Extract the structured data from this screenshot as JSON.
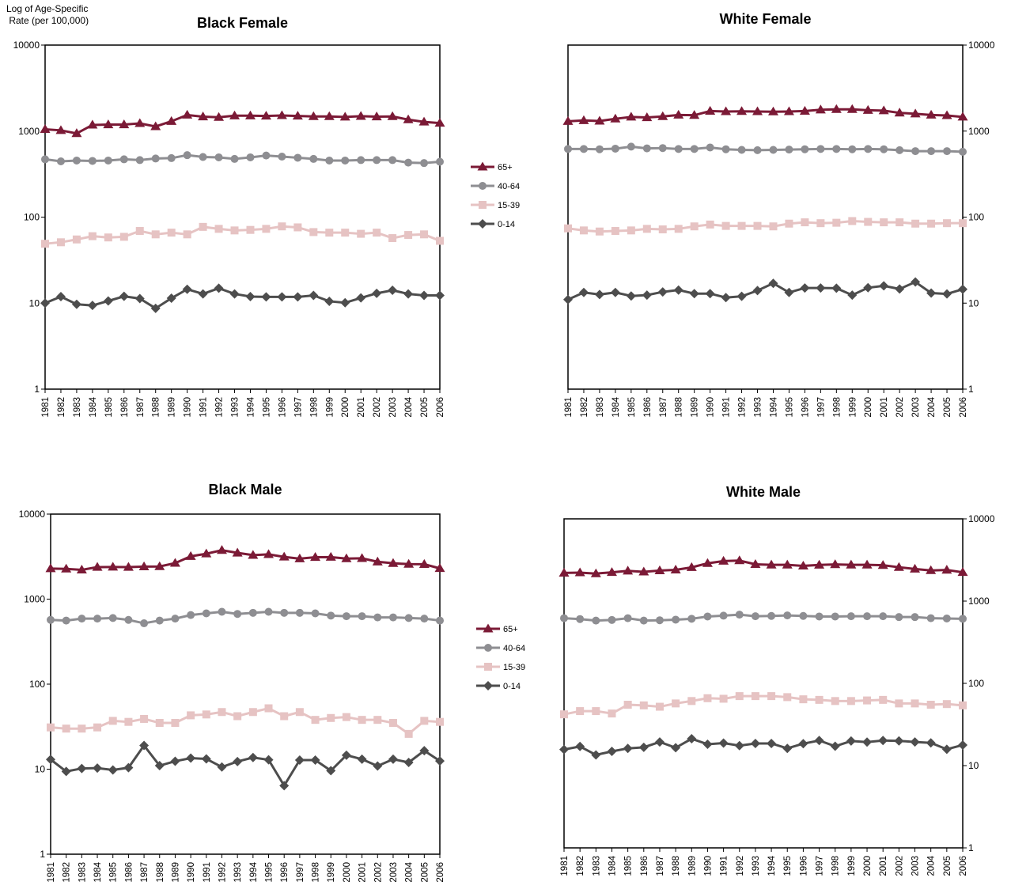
{
  "figure": {
    "ylabel_line1": "Log of Age-Specific",
    "ylabel_line2": " Rate (per 100,000)"
  },
  "colors": {
    "65+": "#7b1a36",
    "40-64": "#8e8e92",
    "15-39": "#e6c3c3",
    "0-14": "#4d4d4d"
  },
  "chart_data": [
    {
      "type": "line",
      "title": "Black Female",
      "x": [
        "1981",
        "1982",
        "1983",
        "1984",
        "1985",
        "1986",
        "1987",
        "1988",
        "1989",
        "1990",
        "1991",
        "1992",
        "1993",
        "1994",
        "1995",
        "1996",
        "1997",
        "1998",
        "1999",
        "2000",
        "2001",
        "2002",
        "2003",
        "2004",
        "2005",
        "2006"
      ],
      "yscale": "log",
      "ylim": [
        1,
        10000
      ],
      "yticks": [
        "1",
        "10",
        "100",
        "1000",
        "10000"
      ],
      "axis_side": "left",
      "series": [
        {
          "name": "65+",
          "marker": "triangle",
          "values": [
            1050,
            1020,
            940,
            1180,
            1190,
            1190,
            1230,
            1130,
            1300,
            1540,
            1470,
            1450,
            1510,
            1510,
            1500,
            1520,
            1500,
            1480,
            1480,
            1460,
            1490,
            1470,
            1480,
            1360,
            1280,
            1240
          ]
        },
        {
          "name": "40-64",
          "marker": "circle",
          "values": [
            470,
            445,
            455,
            450,
            455,
            470,
            460,
            480,
            485,
            525,
            500,
            495,
            475,
            495,
            520,
            505,
            490,
            475,
            455,
            455,
            460,
            460,
            460,
            430,
            425,
            440
          ]
        },
        {
          "name": "15-39",
          "marker": "square",
          "values": [
            49,
            51,
            55,
            60,
            58,
            59,
            69,
            63,
            66,
            63,
            77,
            73,
            70,
            71,
            73,
            78,
            76,
            67,
            66,
            66,
            64,
            66,
            57,
            62,
            63,
            53
          ]
        },
        {
          "name": "0-14",
          "marker": "diamond",
          "values": [
            10,
            11.9,
            9.7,
            9.4,
            10.6,
            12,
            11.3,
            8.7,
            11.4,
            14.5,
            12.8,
            14.9,
            12.8,
            11.9,
            11.8,
            11.8,
            11.8,
            12.3,
            10.5,
            10.1,
            11.5,
            13,
            14.1,
            12.8,
            12.3,
            12.3
          ]
        }
      ]
    },
    {
      "type": "line",
      "title": "White Female",
      "x": [
        "1981",
        "1982",
        "1983",
        "1984",
        "1985",
        "1986",
        "1987",
        "1988",
        "1989",
        "1990",
        "1991",
        "1992",
        "1993",
        "1994",
        "1995",
        "1996",
        "1997",
        "1998",
        "1999",
        "2000",
        "2001",
        "2002",
        "2003",
        "2004",
        "2005",
        "2006"
      ],
      "yscale": "log",
      "ylim": [
        1,
        10000
      ],
      "yticks": [
        "1",
        "10",
        "100",
        "1000",
        "10000"
      ],
      "axis_side": "right",
      "series": [
        {
          "name": "65+",
          "marker": "triangle",
          "values": [
            1300,
            1330,
            1310,
            1390,
            1460,
            1440,
            1480,
            1540,
            1530,
            1710,
            1690,
            1700,
            1690,
            1680,
            1690,
            1710,
            1770,
            1790,
            1790,
            1750,
            1730,
            1630,
            1590,
            1540,
            1520,
            1460
          ]
        },
        {
          "name": "40-64",
          "marker": "circle",
          "values": [
            620,
            620,
            615,
            625,
            660,
            630,
            635,
            620,
            620,
            645,
            615,
            605,
            600,
            605,
            610,
            615,
            620,
            620,
            615,
            620,
            615,
            600,
            585,
            585,
            585,
            575
          ]
        },
        {
          "name": "15-39",
          "marker": "square",
          "values": [
            74,
            70,
            68,
            69,
            70,
            73,
            72,
            73,
            78,
            82,
            79,
            79,
            79,
            78,
            84,
            87,
            85,
            86,
            90,
            88,
            87,
            87,
            84,
            84,
            85,
            85
          ]
        },
        {
          "name": "0-14",
          "marker": "diamond",
          "values": [
            11,
            13.3,
            12.6,
            13.3,
            12.1,
            12.4,
            13.5,
            14.2,
            12.9,
            12.9,
            11.6,
            12,
            14,
            17,
            13.3,
            15,
            15,
            14.9,
            12.4,
            15.1,
            15.9,
            14.6,
            17.6,
            13.1,
            12.8,
            14.5
          ]
        }
      ]
    },
    {
      "type": "line",
      "title": "Black Male",
      "x": [
        "1981",
        "1982",
        "1983",
        "1984",
        "1985",
        "1986",
        "1987",
        "1988",
        "1989",
        "1990",
        "1991",
        "1992",
        "1993",
        "1994",
        "1995",
        "1996",
        "1997",
        "1998",
        "1999",
        "2000",
        "2001",
        "2002",
        "2003",
        "2004",
        "2005",
        "2006"
      ],
      "yscale": "log",
      "ylim": [
        1,
        10000
      ],
      "yticks": [
        "1",
        "10",
        "100",
        "1000",
        "10000"
      ],
      "axis_side": "left",
      "series": [
        {
          "name": "65+",
          "marker": "triangle",
          "values": [
            2290,
            2270,
            2210,
            2380,
            2390,
            2380,
            2410,
            2420,
            2650,
            3190,
            3420,
            3760,
            3500,
            3290,
            3360,
            3140,
            2990,
            3110,
            3120,
            3000,
            3020,
            2750,
            2640,
            2580,
            2570,
            2300
          ]
        },
        {
          "name": "40-64",
          "marker": "circle",
          "values": [
            570,
            560,
            590,
            590,
            600,
            570,
            520,
            560,
            590,
            650,
            680,
            710,
            670,
            690,
            710,
            690,
            690,
            680,
            640,
            630,
            630,
            610,
            610,
            600,
            590,
            560
          ]
        },
        {
          "name": "15-39",
          "marker": "square",
          "values": [
            31,
            30,
            30,
            31,
            37,
            36,
            39,
            35,
            35,
            43,
            44,
            47,
            42,
            47,
            52,
            42,
            47,
            38,
            40,
            41,
            38,
            38,
            35,
            26,
            37,
            36
          ]
        },
        {
          "name": "0-14",
          "marker": "diamond",
          "values": [
            13,
            9.4,
            10.2,
            10.3,
            9.8,
            10.4,
            19,
            11,
            12.4,
            13.5,
            13.2,
            10.6,
            12.3,
            13.7,
            12.9,
            6.4,
            12.8,
            12.8,
            9.6,
            14.6,
            13.1,
            10.9,
            13.1,
            12,
            16.5,
            12.5
          ]
        }
      ]
    },
    {
      "type": "line",
      "title": "White Male",
      "x": [
        "1981",
        "1982",
        "1983",
        "1984",
        "1985",
        "1986",
        "1987",
        "1988",
        "1989",
        "1990",
        "1991",
        "1992",
        "1993",
        "1994",
        "1995",
        "1996",
        "1997",
        "1998",
        "1999",
        "2000",
        "2001",
        "2002",
        "2003",
        "2004",
        "2005",
        "2006"
      ],
      "yscale": "log",
      "ylim": [
        1,
        10000
      ],
      "yticks": [
        "1",
        "10",
        "100",
        "1000",
        "10000"
      ],
      "axis_side": "right",
      "series": [
        {
          "name": "65+",
          "marker": "triangle",
          "values": [
            2200,
            2220,
            2160,
            2240,
            2330,
            2270,
            2350,
            2400,
            2570,
            2880,
            3070,
            3110,
            2800,
            2760,
            2760,
            2680,
            2750,
            2790,
            2760,
            2760,
            2730,
            2580,
            2460,
            2360,
            2390,
            2240
          ]
        },
        {
          "name": "40-64",
          "marker": "circle",
          "values": [
            620,
            605,
            580,
            590,
            620,
            580,
            585,
            595,
            610,
            650,
            665,
            685,
            655,
            660,
            670,
            660,
            650,
            650,
            655,
            655,
            655,
            640,
            640,
            620,
            615,
            610
          ]
        },
        {
          "name": "15-39",
          "marker": "square",
          "values": [
            42,
            46,
            46,
            43,
            55,
            54,
            52,
            57,
            61,
            66,
            65,
            70,
            70,
            70,
            68,
            64,
            63,
            61,
            61,
            62,
            63,
            57,
            57,
            55,
            56,
            54
          ]
        },
        {
          "name": "0-14",
          "marker": "diamond",
          "values": [
            15.7,
            17.1,
            13.5,
            14.9,
            16.2,
            16.7,
            19.4,
            16.5,
            21.2,
            18.2,
            18.8,
            17.5,
            18.6,
            18.6,
            16.2,
            18.5,
            20.2,
            17.2,
            19.9,
            19.3,
            20.2,
            20,
            19.4,
            18.9,
            15.8,
            17.8
          ]
        }
      ]
    }
  ],
  "legend": {
    "items": [
      "65+",
      "40-64",
      "15-39",
      "0-14"
    ]
  }
}
